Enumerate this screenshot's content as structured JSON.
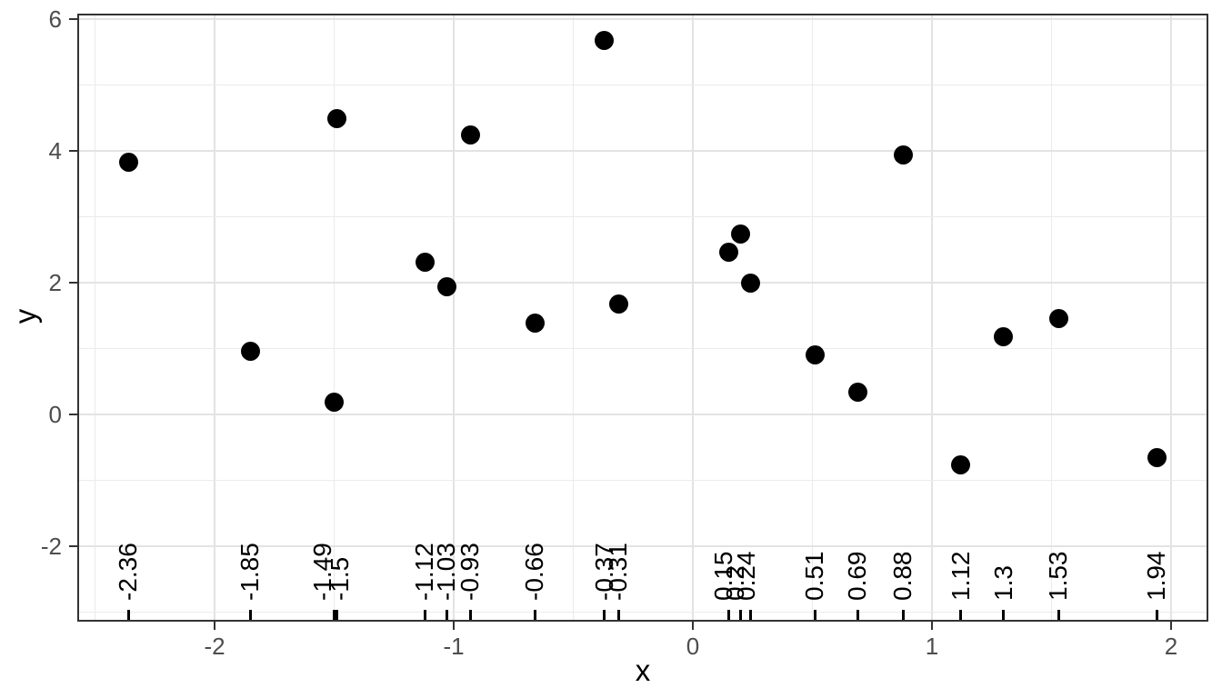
{
  "chart_data": {
    "type": "scatter",
    "title": "",
    "xlabel": "x",
    "ylabel": "y",
    "x_ticks": [
      -2,
      -1,
      0,
      1,
      2
    ],
    "x_tick_labels": [
      "-2",
      "-1",
      "0",
      "1",
      "2"
    ],
    "y_ticks": [
      -2,
      0,
      2,
      4,
      6
    ],
    "y_tick_labels": [
      "-2",
      "0",
      "2",
      "4",
      "6"
    ],
    "xlim": [
      -2.57,
      2.16
    ],
    "ylim": [
      -3.14,
      6.08
    ],
    "grid": "major+minor",
    "legend": "none",
    "point_color": "#000000",
    "rug": "bottom ticks with rotated value labels",
    "points": [
      {
        "x": -2.36,
        "y": 3.83,
        "label": "-2.36"
      },
      {
        "x": -1.85,
        "y": 0.96,
        "label": "-1.85"
      },
      {
        "x": -1.49,
        "y": 4.49,
        "label": "-1.49",
        "label_dx": -15
      },
      {
        "x": -1.5,
        "y": 0.18,
        "label": "-1.5",
        "label_dx": 6
      },
      {
        "x": -1.12,
        "y": 2.31,
        "label": "-1.12"
      },
      {
        "x": -1.03,
        "y": 1.94,
        "label": "-1.03"
      },
      {
        "x": -0.93,
        "y": 4.24,
        "label": "-0.93"
      },
      {
        "x": -0.66,
        "y": 1.38,
        "label": "-0.66"
      },
      {
        "x": -0.37,
        "y": 5.68,
        "label": "-0.37"
      },
      {
        "x": -0.31,
        "y": 1.68,
        "label": "-0.31"
      },
      {
        "x": 0.15,
        "y": 2.46,
        "label": "0.15",
        "label_dx": -5
      },
      {
        "x": 0.2,
        "y": 2.74,
        "label": "0.2",
        "label_dx": -6
      },
      {
        "x": 0.24,
        "y": 2.0,
        "label": "0.24",
        "label_dx": -4
      },
      {
        "x": 0.51,
        "y": 0.91,
        "label": "0.51"
      },
      {
        "x": 0.69,
        "y": 0.34,
        "label": "0.69"
      },
      {
        "x": 0.88,
        "y": 3.94,
        "label": "0.88"
      },
      {
        "x": 1.12,
        "y": -0.77,
        "label": "1.12"
      },
      {
        "x": 1.3,
        "y": 1.18,
        "label": "1.3"
      },
      {
        "x": 1.53,
        "y": 1.46,
        "label": "1.53"
      },
      {
        "x": 1.94,
        "y": -0.66,
        "label": "1.94"
      }
    ]
  },
  "colors": {
    "background": "#ffffff",
    "panel_border": "#333333",
    "grid_major": "#e3e3e3",
    "grid_minor": "#ebebeb",
    "tick_text": "#4d4d4d",
    "point": "#000000"
  }
}
